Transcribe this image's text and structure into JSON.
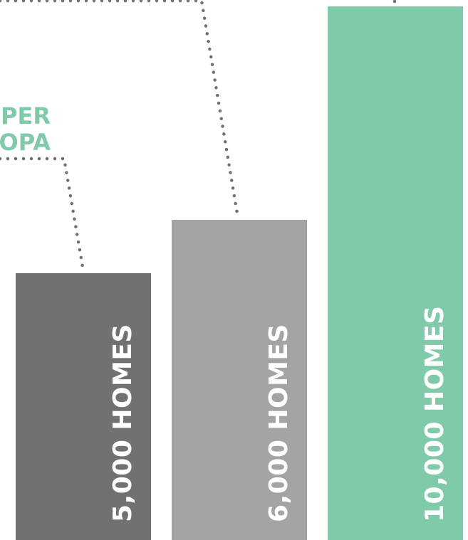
{
  "chart_data": {
    "type": "bar",
    "title": "",
    "xlabel": "",
    "ylabel": "",
    "categories": [
      "5,000 HOMES",
      "6,000 HOMES",
      "10,000 HOMES"
    ],
    "values": [
      5000,
      6000,
      10000
    ],
    "ylim": [
      0,
      10000
    ],
    "grid": false,
    "legend": "none",
    "colors": [
      "#6f7173",
      "#a3a4a6",
      "#7fcaa9"
    ],
    "annotations": {
      "callout_fragment_line1": "PER",
      "callout_fragment_line2": "OPA",
      "callout_color": "#7fcaa9",
      "leader_color": "#6f7173"
    }
  }
}
